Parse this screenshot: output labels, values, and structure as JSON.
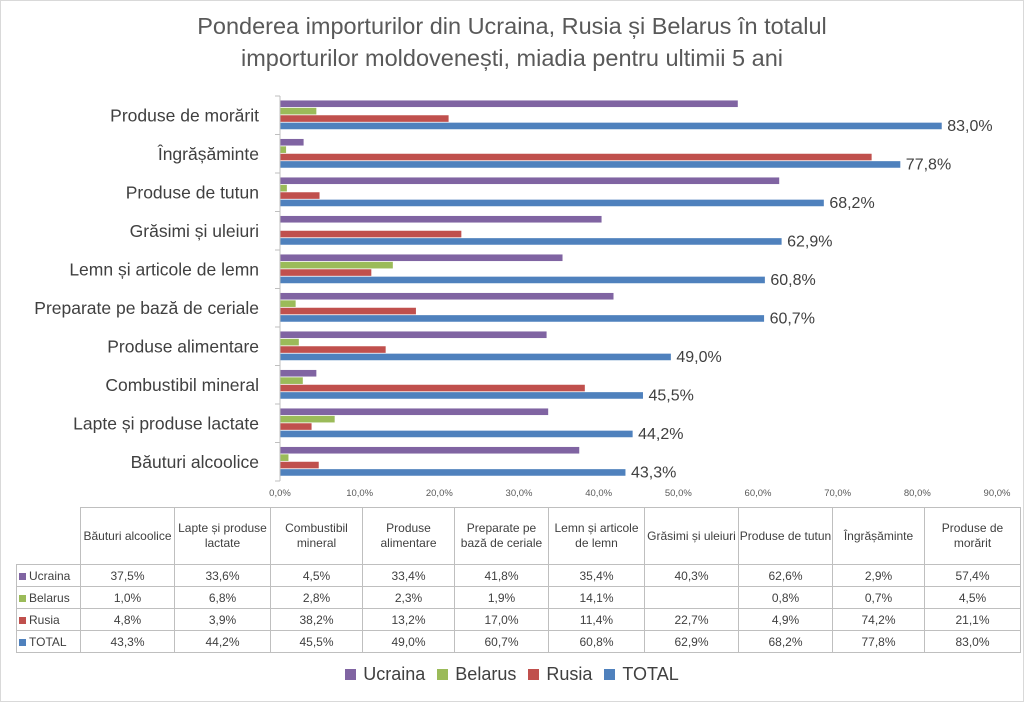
{
  "chart_data": {
    "type": "bar",
    "orientation": "horizontal",
    "title_line1": "Ponderea importurilor din Ucraina, Rusia și Belarus în totalul",
    "title_line2": "importurilor moldovenești, miadia pentru ultimii 5 ani",
    "categories": [
      "Băuturi alcoolice",
      "Lapte și produse lactate",
      "Combustibil mineral",
      "Produse alimentare",
      "Preparate pe bază de ceriale",
      "Lemn și articole de lemn",
      "Grăsimi și uleiuri",
      "Produse de tutun",
      "Îngrășăminte",
      "Produse de morărit"
    ],
    "series": [
      {
        "name": "Ucraina",
        "color": "#8064a2",
        "values": [
          37.5,
          33.6,
          4.5,
          33.4,
          41.8,
          35.4,
          40.3,
          62.6,
          2.9,
          57.4
        ],
        "labels": [
          "37,5%",
          "33,6%",
          "4,5%",
          "33,4%",
          "41,8%",
          "35,4%",
          "40,3%",
          "62,6%",
          "2,9%",
          "57,4%"
        ]
      },
      {
        "name": "Belarus",
        "color": "#9bbb59",
        "values": [
          1.0,
          6.8,
          2.8,
          2.3,
          1.9,
          14.1,
          null,
          0.8,
          0.7,
          4.5
        ],
        "labels": [
          "1,0%",
          "6,8%",
          "2,8%",
          "2,3%",
          "1,9%",
          "14,1%",
          "",
          "0,8%",
          "0,7%",
          "4,5%"
        ]
      },
      {
        "name": "Rusia",
        "color": "#c0504d",
        "values": [
          4.8,
          3.9,
          38.2,
          13.2,
          17.0,
          11.4,
          22.7,
          4.9,
          74.2,
          21.1
        ],
        "labels": [
          "4,8%",
          "3,9%",
          "38,2%",
          "13,2%",
          "17,0%",
          "11,4%",
          "22,7%",
          "4,9%",
          "74,2%",
          "21,1%"
        ]
      },
      {
        "name": "TOTAL",
        "color": "#4f81bd",
        "values": [
          43.3,
          44.2,
          45.5,
          49.0,
          60.7,
          60.8,
          62.9,
          68.2,
          77.8,
          83.0
        ],
        "labels": [
          "43,3%",
          "44,2%",
          "45,5%",
          "49,0%",
          "60,7%",
          "60,8%",
          "62,9%",
          "68,2%",
          "77,8%",
          "83,0%"
        ]
      }
    ],
    "table_headers": [
      "Băuturi alcoolice",
      "Lapte și produse lactate",
      "Combustibil mineral",
      "Produse alimentare",
      "Preparate pe bază de ceriale",
      "Lemn și articole de lemn",
      "Grăsimi și uleiuri",
      "Produse de tutun",
      "Îngrășăminte",
      "Produse de morărit"
    ],
    "xlim": [
      0,
      90
    ],
    "x_ticks": [
      "0,0%",
      "10,0%",
      "20,0%",
      "30,0%",
      "40,0%",
      "50,0%",
      "60,0%",
      "70,0%",
      "80,0%",
      "90,0%"
    ],
    "data_labels_series": "TOTAL",
    "legend_position": "bottom",
    "grid": false
  }
}
